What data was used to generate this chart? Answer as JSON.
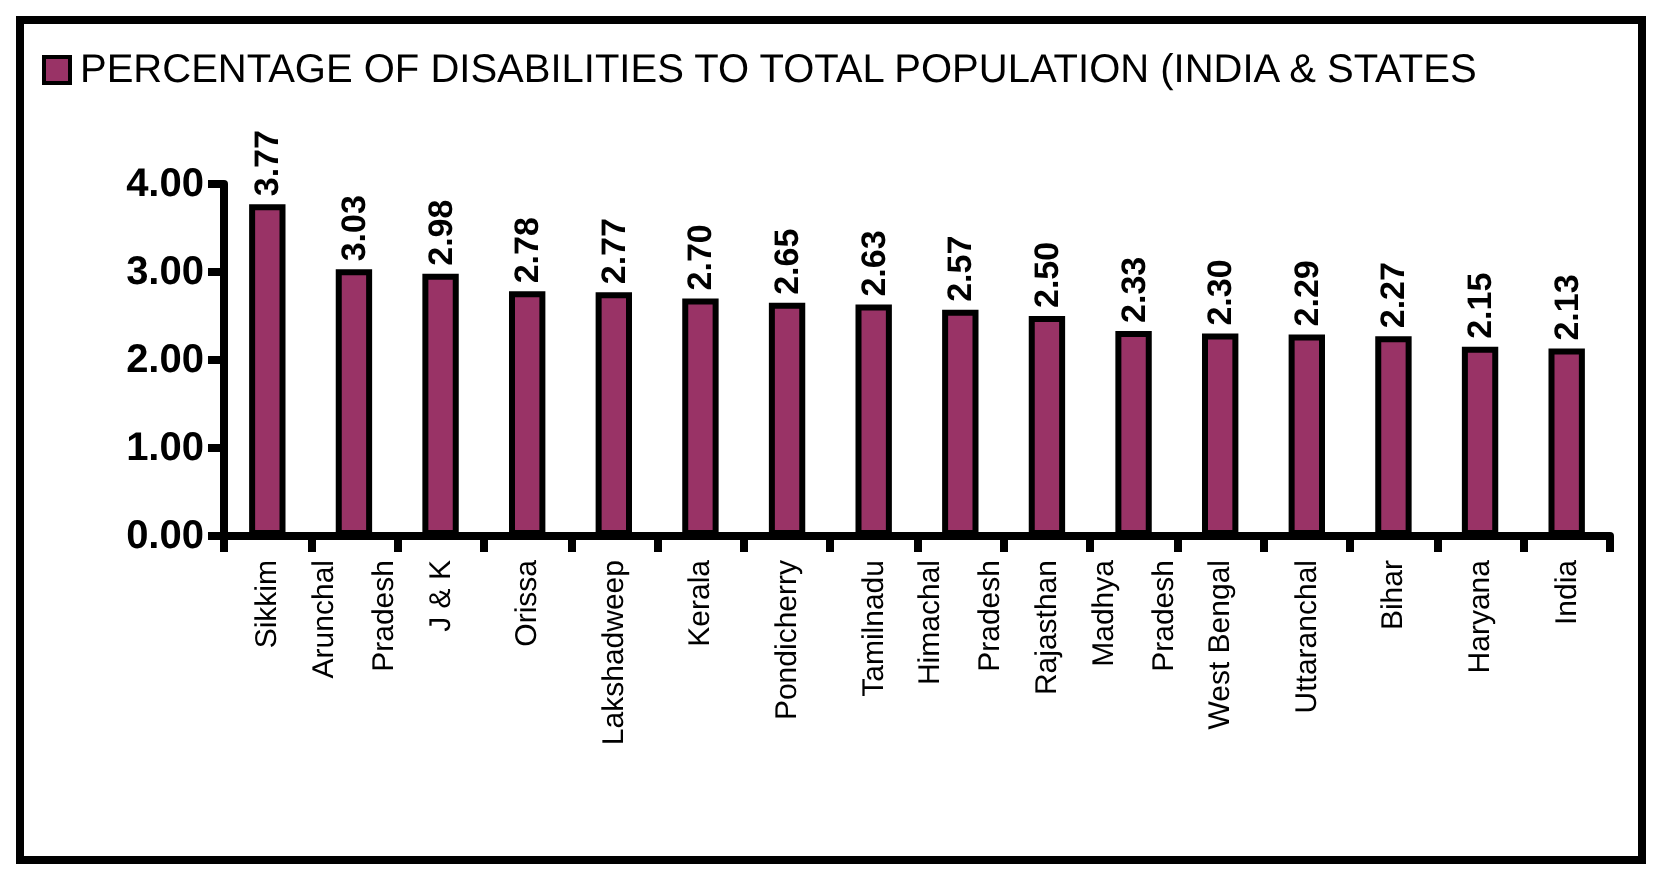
{
  "chart_data": {
    "type": "bar",
    "categories": [
      "Sikkim",
      "Arunchal\nPradesh",
      "J & K",
      "Orissa",
      "Lakshadweep",
      "Kerala",
      "Pondicherry",
      "Tamilnadu",
      "Himachal\nPradesh",
      "Rajasthan",
      "Madhya\nPradesh",
      "West Bengal",
      "Uttaranchal",
      "Bihar",
      "Haryana",
      "India"
    ],
    "series": [
      {
        "name": "PERCENTAGE OF DISABILITIES TO TOTAL POPULATION (INDIA & STATES",
        "color": "#993366",
        "values": [
          3.77,
          3.03,
          2.98,
          2.78,
          2.77,
          2.7,
          2.65,
          2.63,
          2.57,
          2.5,
          2.33,
          2.3,
          2.29,
          2.27,
          2.15,
          2.13
        ],
        "value_labels": [
          "3.77",
          "3.03",
          "2.98",
          "2.78",
          "2.77",
          "2.70",
          "2.65",
          "2.63",
          "2.57",
          "2.50",
          "2.33",
          "2.30",
          "2.29",
          "2.27",
          "2.15",
          "2.13"
        ]
      }
    ],
    "ylim": [
      0,
      4
    ],
    "yticks": [
      {
        "value": 0,
        "label": "0.00"
      },
      {
        "value": 1,
        "label": "1.00"
      },
      {
        "value": 2,
        "label": "2.00"
      },
      {
        "value": 3,
        "label": "3.00"
      },
      {
        "value": 4,
        "label": "4.00"
      }
    ],
    "legend": "top left",
    "grid": false
  }
}
